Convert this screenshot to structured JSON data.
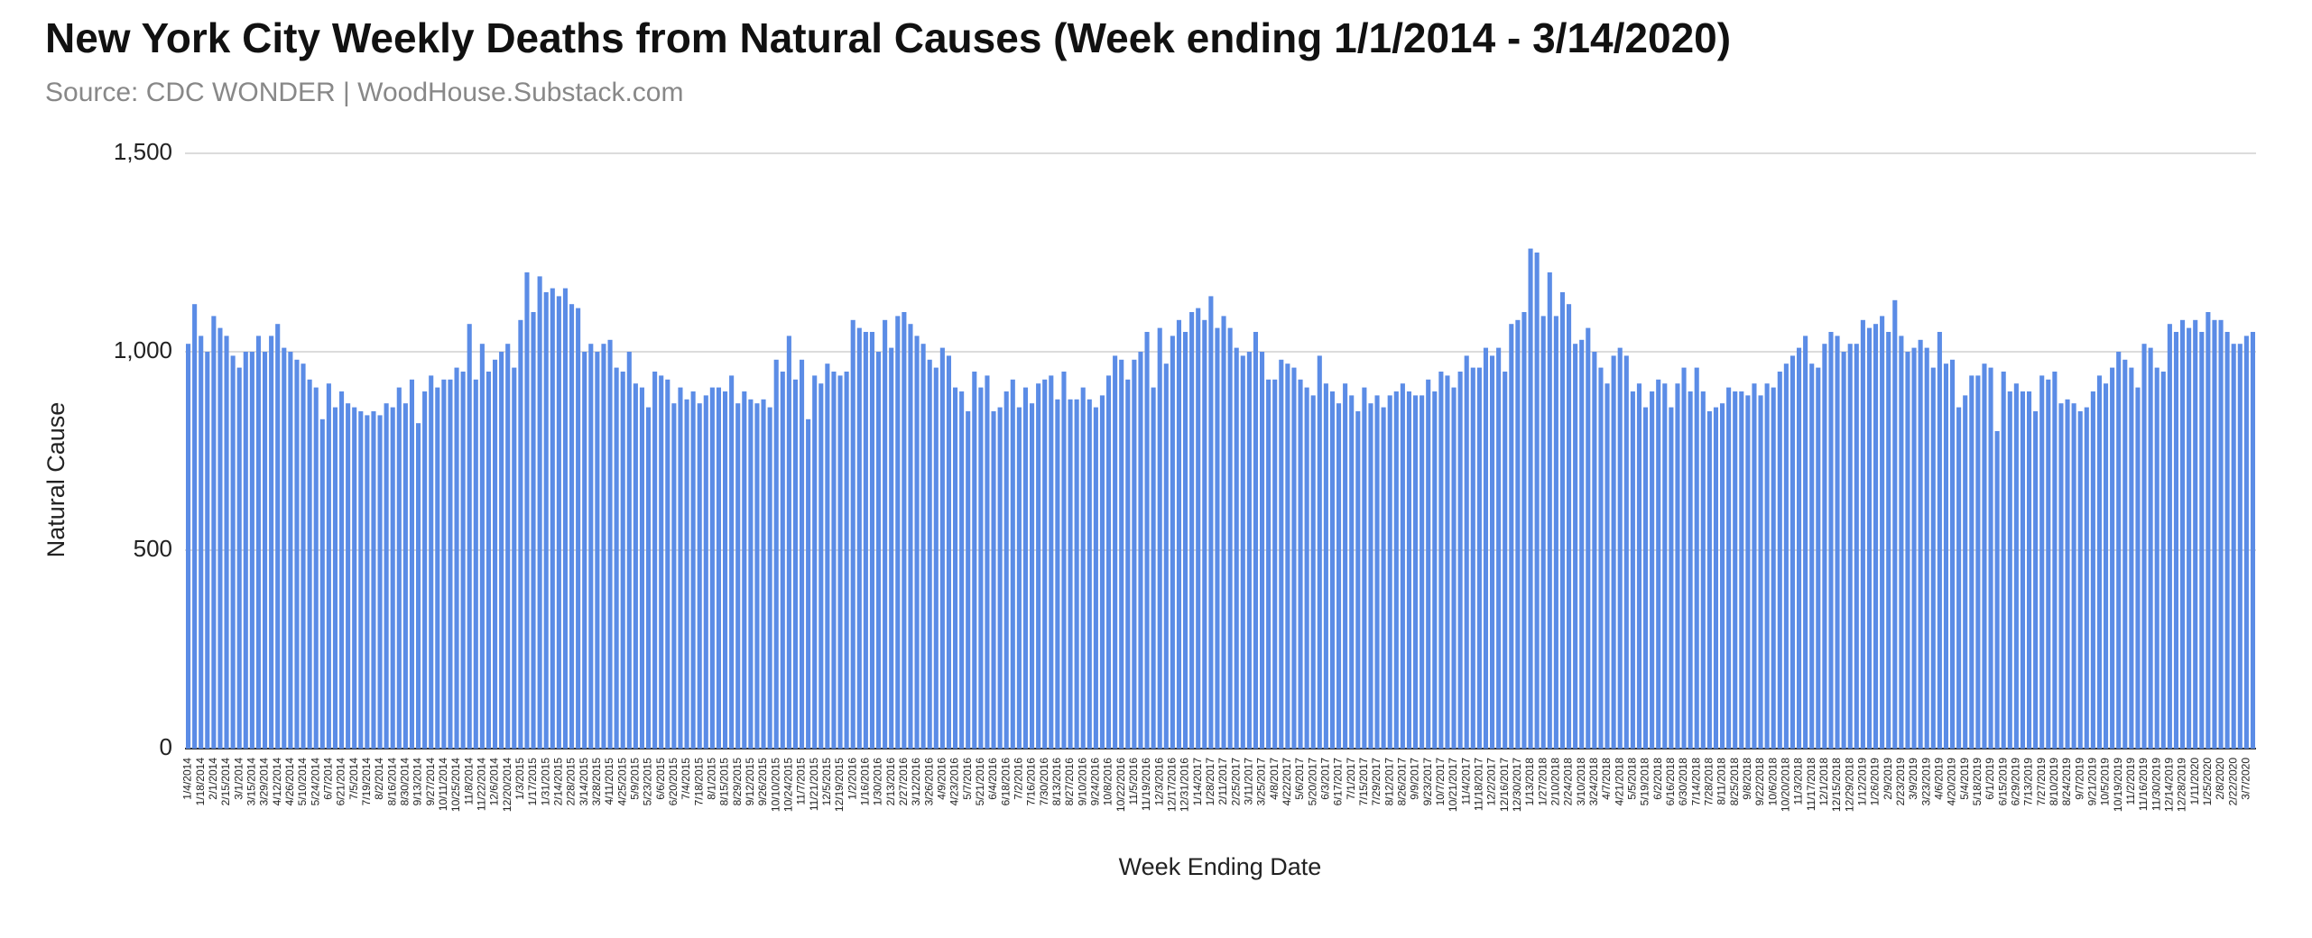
{
  "chart_data": {
    "type": "bar",
    "title": "New York City Weekly Deaths from Natural Causes (Week ending 1/1/2014 - 3/14/2020)",
    "subtitle": "Source: CDC WONDER | WoodHouse.Substack.com",
    "x_label": "Week Ending Date",
    "y_label": "Natural Cause",
    "color": "#5b8ce6",
    "grid": true,
    "ylim": [
      0,
      1500
    ],
    "yticks": [
      0,
      {
        "value": 500,
        "label": "500"
      },
      {
        "value": 1000,
        "label": "1,000"
      },
      {
        "value": 1500,
        "label": "1,500"
      }
    ],
    "categories": [
      "1/4/2014",
      null,
      "1/18/2014",
      null,
      "2/1/2014",
      null,
      "2/15/2014",
      null,
      "3/1/2014",
      null,
      "3/15/2014",
      null,
      "3/29/2014",
      null,
      "4/12/2014",
      null,
      "4/26/2014",
      null,
      "5/10/2014",
      null,
      "5/24/2014",
      null,
      "6/7/2014",
      null,
      "6/21/2014",
      null,
      "7/5/2014",
      null,
      "7/19/2014",
      null,
      "8/2/2014",
      null,
      "8/16/2014",
      null,
      "8/30/2014",
      null,
      "9/13/2014",
      null,
      "9/27/2014",
      null,
      "10/11/2014",
      null,
      "10/25/2014",
      null,
      "11/8/2014",
      null,
      "11/22/2014",
      null,
      "12/6/2014",
      null,
      "12/20/2014",
      null,
      "1/3/2015",
      null,
      "1/17/2015",
      null,
      "1/31/2015",
      null,
      "2/14/2015",
      null,
      "2/28/2015",
      null,
      "3/14/2015",
      null,
      "3/28/2015",
      null,
      "4/11/2015",
      null,
      "4/25/2015",
      null,
      "5/9/2015",
      null,
      "5/23/2015",
      null,
      "6/6/2015",
      null,
      "6/20/2015",
      null,
      "7/4/2015",
      null,
      "7/18/2015",
      null,
      "8/1/2015",
      null,
      "8/15/2015",
      null,
      "8/29/2015",
      null,
      "9/12/2015",
      null,
      "9/26/2015",
      null,
      "10/10/2015",
      null,
      "10/24/2015",
      null,
      "11/7/2015",
      null,
      "11/21/2015",
      null,
      "12/5/2015",
      null,
      "12/19/2015",
      null,
      "1/2/2016",
      null,
      "1/16/2016",
      null,
      "1/30/2016",
      null,
      "2/13/2016",
      null,
      "2/27/2016",
      null,
      "3/12/2016",
      null,
      "3/26/2016",
      null,
      "4/9/2016",
      null,
      "4/23/2016",
      null,
      "5/7/2016",
      null,
      "5/21/2016",
      null,
      "6/4/2016",
      null,
      "6/18/2016",
      null,
      "7/2/2016",
      null,
      "7/16/2016",
      null,
      "7/30/2016",
      null,
      "8/13/2016",
      null,
      "8/27/2016",
      null,
      "9/10/2016",
      null,
      "9/24/2016",
      null,
      "10/8/2016",
      null,
      "10/22/2016",
      null,
      "11/5/2016",
      null,
      "11/19/2016",
      null,
      "12/3/2016",
      null,
      "12/17/2016",
      null,
      "12/31/2016",
      null,
      "1/14/2017",
      null,
      "1/28/2017",
      null,
      "2/11/2017",
      null,
      "2/25/2017",
      null,
      "3/11/2017",
      null,
      "3/25/2017",
      null,
      "4/8/2017",
      null,
      "4/22/2017",
      null,
      "5/6/2017",
      null,
      "5/20/2017",
      null,
      "6/3/2017",
      null,
      "6/17/2017",
      null,
      "7/1/2017",
      null,
      "7/15/2017",
      null,
      "7/29/2017",
      null,
      "8/12/2017",
      null,
      "8/26/2017",
      null,
      "9/9/2017",
      null,
      "9/23/2017",
      null,
      "10/7/2017",
      null,
      "10/21/2017",
      null,
      "11/4/2017",
      null,
      "11/18/2017",
      null,
      "12/2/2017",
      null,
      "12/16/2017",
      null,
      "12/30/2017",
      null,
      "1/13/2018",
      null,
      "1/27/2018",
      null,
      "2/10/2018",
      null,
      "2/24/2018",
      null,
      "3/10/2018",
      null,
      "3/24/2018",
      null,
      "4/7/2018",
      null,
      "4/21/2018",
      null,
      "5/5/2018",
      null,
      "5/19/2018",
      null,
      "6/2/2018",
      null,
      "6/16/2018",
      null,
      "6/30/2018",
      null,
      "7/14/2018",
      null,
      "7/28/2018",
      null,
      "8/11/2018",
      null,
      "8/25/2018",
      null,
      "9/8/2018",
      null,
      "9/22/2018",
      null,
      "10/6/2018",
      null,
      "10/20/2018",
      null,
      "11/3/2018",
      null,
      "11/17/2018",
      null,
      "12/1/2018",
      null,
      "12/15/2018",
      null,
      "12/29/2018",
      null,
      "1/12/2019",
      null,
      "1/26/2019",
      null,
      "2/9/2019",
      null,
      "2/23/2019",
      null,
      "3/9/2019",
      null,
      "3/23/2019",
      null,
      "4/6/2019",
      null,
      "4/20/2019",
      null,
      "5/4/2019",
      null,
      "5/18/2019",
      null,
      "6/1/2019",
      null,
      "6/15/2019",
      null,
      "6/29/2019",
      null,
      "7/13/2019",
      null,
      "7/27/2019",
      null,
      "8/10/2019",
      null,
      "8/24/2019",
      null,
      "9/7/2019",
      null,
      "9/21/2019",
      null,
      "10/5/2019",
      null,
      "10/19/2019",
      null,
      "11/2/2019",
      null,
      "11/16/2019",
      null,
      "11/30/2019",
      null,
      "12/14/2019",
      null,
      "12/28/2019",
      null,
      "1/11/2020",
      null,
      "1/25/2020",
      null,
      "2/8/2020",
      null,
      "2/22/2020",
      null,
      "3/7/2020",
      null
    ],
    "values": [
      1020,
      1120,
      1040,
      1000,
      1090,
      1060,
      1040,
      990,
      960,
      1000,
      1000,
      1040,
      1000,
      1040,
      1070,
      1010,
      1000,
      980,
      970,
      930,
      910,
      830,
      920,
      860,
      900,
      870,
      860,
      850,
      840,
      850,
      840,
      870,
      860,
      910,
      870,
      930,
      820,
      900,
      940,
      910,
      930,
      930,
      960,
      950,
      1070,
      930,
      1020,
      950,
      980,
      1000,
      1020,
      960,
      1080,
      1200,
      1100,
      1190,
      1150,
      1160,
      1140,
      1160,
      1120,
      1110,
      1000,
      1020,
      1000,
      1020,
      1030,
      960,
      950,
      1000,
      920,
      910,
      860,
      950,
      940,
      930,
      870,
      910,
      880,
      900,
      870,
      890,
      910,
      910,
      900,
      940,
      870,
      900,
      880,
      870,
      880,
      860,
      980,
      950,
      1040,
      930,
      980,
      830,
      940,
      920,
      970,
      950,
      940,
      950,
      1080,
      1060,
      1050,
      1050,
      1000,
      1080,
      1010,
      1090,
      1100,
      1070,
      1040,
      1020,
      980,
      960,
      1010,
      990,
      910,
      900,
      850,
      950,
      910,
      940,
      850,
      860,
      900,
      930,
      860,
      910,
      870,
      920,
      930,
      940,
      880,
      950,
      880,
      880,
      910,
      880,
      860,
      890,
      940,
      990,
      980,
      930,
      980,
      1000,
      1050,
      910,
      1060,
      970,
      1040,
      1080,
      1050,
      1100,
      1110,
      1080,
      1140,
      1060,
      1090,
      1060,
      1010,
      990,
      1000,
      1050,
      1000,
      930,
      930,
      980,
      970,
      960,
      930,
      910,
      890,
      990,
      920,
      900,
      870,
      920,
      890,
      850,
      910,
      870,
      890,
      860,
      890,
      900,
      920,
      900,
      890,
      890,
      930,
      900,
      950,
      940,
      910,
      950,
      990,
      960,
      960,
      1010,
      990,
      1010,
      950,
      1070,
      1080,
      1100,
      1260,
      1250,
      1090,
      1200,
      1090,
      1150,
      1120,
      1020,
      1030,
      1060,
      1000,
      960,
      920,
      990,
      1010,
      990,
      900,
      920,
      860,
      900,
      930,
      920,
      860,
      920,
      960,
      900,
      960,
      900,
      850,
      860,
      870,
      910,
      900,
      900,
      890,
      920,
      890,
      920,
      910,
      950,
      970,
      990,
      1010,
      1040,
      970,
      960,
      1020,
      1050,
      1040,
      1000,
      1020,
      1020,
      1080,
      1060,
      1070,
      1090,
      1050,
      1130,
      1040,
      1000,
      1010,
      1030,
      1010,
      960,
      1050,
      970,
      980,
      860,
      890,
      940,
      940,
      970,
      960,
      800,
      950,
      900,
      920,
      900,
      900,
      850,
      940,
      930,
      950,
      870,
      880,
      870,
      850,
      860,
      900,
      940,
      920,
      960,
      1000,
      980,
      960,
      910,
      1020,
      1010,
      960,
      950,
      1070,
      1050,
      1080,
      1060,
      1080,
      1050,
      1100,
      1080,
      1080,
      1050,
      1020,
      1020,
      1040,
      1050
    ]
  }
}
